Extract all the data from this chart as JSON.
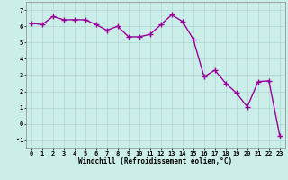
{
  "x": [
    0,
    1,
    2,
    3,
    4,
    5,
    6,
    7,
    8,
    9,
    10,
    11,
    12,
    13,
    14,
    15,
    16,
    17,
    18,
    19,
    20,
    21,
    22,
    23
  ],
  "y": [
    6.2,
    6.1,
    6.6,
    6.4,
    6.4,
    6.4,
    6.1,
    5.75,
    6.0,
    5.35,
    5.35,
    5.5,
    6.1,
    6.7,
    6.3,
    5.2,
    2.9,
    3.3,
    2.5,
    1.9,
    1.05,
    2.6,
    2.65,
    -0.7
  ],
  "line_color": "#990099",
  "marker": "+",
  "marker_size": 4.0,
  "bg_color": "#cceee8",
  "grid_color": "#aad8d0",
  "xlabel": "Windchill (Refroidissement éolien,°C)",
  "ylabel": "",
  "ylim": [
    -1.5,
    7.5
  ],
  "yticks": [
    -1,
    0,
    1,
    2,
    3,
    4,
    5,
    6,
    7
  ],
  "xlim": [
    -0.5,
    23.5
  ],
  "xticks": [
    0,
    1,
    2,
    3,
    4,
    5,
    6,
    7,
    8,
    9,
    10,
    11,
    12,
    13,
    14,
    15,
    16,
    17,
    18,
    19,
    20,
    21,
    22,
    23
  ],
  "tick_label_fontsize": 5.0,
  "xlabel_fontsize": 5.5,
  "line_width": 1.0
}
